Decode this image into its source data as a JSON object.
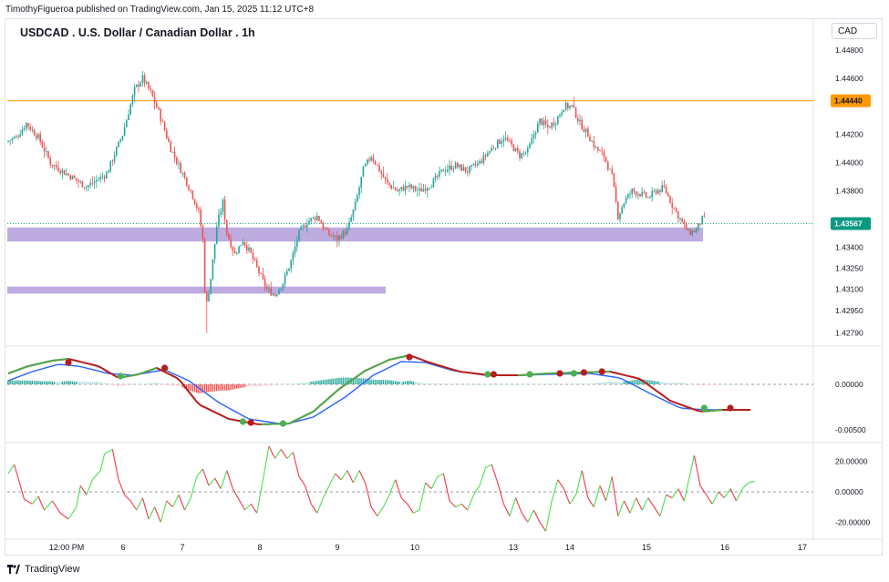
{
  "publisher": "TimothyFigueroa published on TradingView.com, Jan 15, 2025 11:12 UTC+8",
  "symbol_title": "USDCAD . U.S. Dollar / Canadian Dollar . 1h",
  "currency": "CAD",
  "footer_brand": "TradingView",
  "colors": {
    "up": "#26a69a",
    "down": "#ef5350",
    "resistance": "#ff9800",
    "zone": "#b39ddb",
    "price_badge": "#089981",
    "macd_fast": "#4caf50",
    "macd_slow_down": "#b71c1c",
    "macd_signal": "#2962ff",
    "osc_down": "#f23645",
    "osc_up": "#4cdf50"
  },
  "chart_data": [
    {
      "type": "candlestick",
      "pane": "price",
      "title": "USDCAD . U.S. Dollar / Canadian Dollar . 1h",
      "y_ticks": [
        "1.44800",
        "1.44600",
        "1.44440",
        "1.44200",
        "1.44000",
        "1.43800",
        "1.43567",
        "1.43400",
        "1.43250",
        "1.43100",
        "1.42950",
        "1.42790"
      ],
      "ylim": [
        1.4271,
        1.4491
      ],
      "x_ticks": [
        "12:00 PM",
        "6",
        "7",
        "8",
        "9",
        "10",
        "13",
        "14",
        "15",
        "16",
        "17"
      ],
      "resistance_line": 1.4444,
      "resistance_label": "1.44440",
      "last_price": 1.43567,
      "last_price_label": "1.43567",
      "zones": [
        {
          "from": 1.4344,
          "to": 1.4354
        },
        {
          "from": 1.4307,
          "to": 1.4312
        }
      ],
      "path": [
        [
          0,
          1.4415
        ],
        [
          5,
          1.4418
        ],
        [
          10,
          1.4428
        ],
        [
          16,
          1.4418
        ],
        [
          22,
          1.44
        ],
        [
          30,
          1.4392
        ],
        [
          40,
          1.4383
        ],
        [
          50,
          1.4392
        ],
        [
          58,
          1.442
        ],
        [
          64,
          1.4452
        ],
        [
          68,
          1.446
        ],
        [
          72,
          1.445
        ],
        [
          76,
          1.4436
        ],
        [
          82,
          1.441
        ],
        [
          88,
          1.4392
        ],
        [
          92,
          1.438
        ],
        [
          96,
          1.4365
        ],
        [
          98,
          1.4345
        ],
        [
          99,
          1.431
        ],
        [
          100,
          1.43
        ],
        [
          102,
          1.4318
        ],
        [
          105,
          1.4355
        ],
        [
          108,
          1.4372
        ],
        [
          110,
          1.435
        ],
        [
          114,
          1.4335
        ],
        [
          118,
          1.4345
        ],
        [
          122,
          1.4335
        ],
        [
          126,
          1.4322
        ],
        [
          130,
          1.431
        ],
        [
          134,
          1.4306
        ],
        [
          138,
          1.4315
        ],
        [
          142,
          1.433
        ],
        [
          146,
          1.435
        ],
        [
          150,
          1.4358
        ],
        [
          155,
          1.4362
        ],
        [
          160,
          1.435
        ],
        [
          165,
          1.4346
        ],
        [
          170,
          1.4352
        ],
        [
          174,
          1.437
        ],
        [
          178,
          1.4395
        ],
        [
          182,
          1.4405
        ],
        [
          186,
          1.4395
        ],
        [
          190,
          1.4385
        ],
        [
          195,
          1.438
        ],
        [
          200,
          1.4383
        ],
        [
          206,
          1.438
        ],
        [
          212,
          1.4385
        ],
        [
          218,
          1.4395
        ],
        [
          224,
          1.4398
        ],
        [
          230,
          1.4394
        ],
        [
          236,
          1.44
        ],
        [
          242,
          1.441
        ],
        [
          248,
          1.4418
        ],
        [
          252,
          1.4412
        ],
        [
          256,
          1.4405
        ],
        [
          260,
          1.4408
        ],
        [
          263,
          1.442
        ],
        [
          266,
          1.443
        ],
        [
          270,
          1.4425
        ],
        [
          274,
          1.443
        ],
        [
          278,
          1.444
        ],
        [
          282,
          1.444
        ],
        [
          286,
          1.4428
        ],
        [
          290,
          1.442
        ],
        [
          294,
          1.441
        ],
        [
          298,
          1.4405
        ],
        [
          302,
          1.439
        ],
        [
          305,
          1.4362
        ],
        [
          308,
          1.4372
        ],
        [
          312,
          1.438
        ],
        [
          316,
          1.4378
        ],
        [
          320,
          1.4375
        ],
        [
          324,
          1.438
        ],
        [
          328,
          1.4382
        ],
        [
          332,
          1.437
        ],
        [
          336,
          1.436
        ],
        [
          340,
          1.435
        ],
        [
          344,
          1.4352
        ],
        [
          347,
          1.436
        ]
      ],
      "series": [
        {
          "name": "USDCAD",
          "values": []
        }
      ]
    },
    {
      "type": "line",
      "pane": "macd",
      "y_ticks": [
        "0.00000",
        "-0.00500"
      ],
      "ylim": [
        -0.0062,
        0.0038
      ],
      "fast_path": [
        [
          0,
          0.0012
        ],
        [
          10,
          0.002
        ],
        [
          22,
          0.0026
        ],
        [
          30,
          0.0028
        ],
        [
          45,
          0.002
        ],
        [
          55,
          0.0007
        ],
        [
          65,
          0.0011
        ],
        [
          74,
          0.0018
        ],
        [
          85,
          0.0006
        ],
        [
          95,
          -0.0022
        ],
        [
          110,
          -0.0038
        ],
        [
          125,
          -0.0044
        ],
        [
          140,
          -0.0043
        ],
        [
          152,
          -0.003
        ],
        [
          165,
          -0.0005
        ],
        [
          178,
          0.0015
        ],
        [
          190,
          0.0027
        ],
        [
          200,
          0.0032
        ],
        [
          210,
          0.0024
        ],
        [
          225,
          0.0014
        ],
        [
          240,
          0.001
        ],
        [
          255,
          0.001
        ],
        [
          270,
          0.0012
        ],
        [
          285,
          0.0013
        ],
        [
          300,
          0.0014
        ],
        [
          315,
          0.0006
        ],
        [
          330,
          -0.0018
        ],
        [
          345,
          -0.003
        ],
        [
          356,
          -0.0028
        ],
        [
          370,
          -0.0028
        ]
      ],
      "slow_path": [
        [
          0,
          0.0004
        ],
        [
          12,
          0.0014
        ],
        [
          25,
          0.0022
        ],
        [
          35,
          0.002
        ],
        [
          50,
          0.0012
        ],
        [
          62,
          0.001
        ],
        [
          78,
          0.0016
        ],
        [
          90,
          0.0004
        ],
        [
          105,
          -0.002
        ],
        [
          120,
          -0.0038
        ],
        [
          138,
          -0.0044
        ],
        [
          152,
          -0.0036
        ],
        [
          168,
          -0.0014
        ],
        [
          182,
          0.001
        ],
        [
          196,
          0.0025
        ],
        [
          208,
          0.0024
        ],
        [
          222,
          0.0015
        ],
        [
          238,
          0.001
        ],
        [
          255,
          0.001
        ],
        [
          270,
          0.0011
        ],
        [
          290,
          0.0012
        ],
        [
          305,
          0.0007
        ],
        [
          320,
          -0.001
        ],
        [
          335,
          -0.0026
        ],
        [
          348,
          -0.0028
        ],
        [
          360,
          -0.0028
        ]
      ],
      "cross_points": [
        {
          "x": 30,
          "v": 0.0024,
          "kind": "down"
        },
        {
          "x": 56,
          "v": 0.0009,
          "kind": "up"
        },
        {
          "x": 78,
          "v": 0.0018,
          "kind": "down"
        },
        {
          "x": 117,
          "v": -0.0041,
          "kind": "up"
        },
        {
          "x": 121,
          "v": -0.0042,
          "kind": "down"
        },
        {
          "x": 137,
          "v": -0.0043,
          "kind": "up"
        },
        {
          "x": 200,
          "v": 0.003,
          "kind": "down"
        },
        {
          "x": 239,
          "v": 0.0011,
          "kind": "up"
        },
        {
          "x": 242,
          "v": 0.0011,
          "kind": "down"
        },
        {
          "x": 260,
          "v": 0.0011,
          "kind": "up"
        },
        {
          "x": 275,
          "v": 0.0012,
          "kind": "down"
        },
        {
          "x": 282,
          "v": 0.0012,
          "kind": "up"
        },
        {
          "x": 287,
          "v": 0.0013,
          "kind": "down"
        },
        {
          "x": 296,
          "v": 0.0014,
          "kind": "down"
        },
        {
          "x": 347,
          "v": -0.0026,
          "kind": "up"
        },
        {
          "x": 360,
          "v": -0.0026,
          "kind": "down"
        }
      ]
    },
    {
      "type": "line",
      "pane": "oscillator",
      "y_ticks": [
        "20.00000",
        "0.00000",
        "-20.00000"
      ],
      "ylim": [
        -30,
        30
      ],
      "path": [
        [
          0,
          12
        ],
        [
          3,
          18
        ],
        [
          5,
          9
        ],
        [
          8,
          -5
        ],
        [
          12,
          -8
        ],
        [
          15,
          -3
        ],
        [
          18,
          -12
        ],
        [
          22,
          -6
        ],
        [
          26,
          -14
        ],
        [
          30,
          -18
        ],
        [
          34,
          -10
        ],
        [
          36,
          4
        ],
        [
          39,
          -2
        ],
        [
          42,
          8
        ],
        [
          46,
          14
        ],
        [
          48,
          25
        ],
        [
          52,
          28
        ],
        [
          55,
          8
        ],
        [
          58,
          -2
        ],
        [
          61,
          -6
        ],
        [
          64,
          -12
        ],
        [
          67,
          -4
        ],
        [
          70,
          -18
        ],
        [
          73,
          -10
        ],
        [
          76,
          -20
        ],
        [
          79,
          -6
        ],
        [
          82,
          -10
        ],
        [
          85,
          -2
        ],
        [
          88,
          -12
        ],
        [
          91,
          -4
        ],
        [
          94,
          10
        ],
        [
          97,
          15
        ],
        [
          100,
          4
        ],
        [
          103,
          9
        ],
        [
          106,
          2
        ],
        [
          109,
          14
        ],
        [
          112,
          2
        ],
        [
          115,
          -5
        ],
        [
          118,
          -12
        ],
        [
          121,
          -8
        ],
        [
          124,
          -14
        ],
        [
          127,
          8
        ],
        [
          130,
          30
        ],
        [
          133,
          22
        ],
        [
          136,
          28
        ],
        [
          139,
          22
        ],
        [
          142,
          26
        ],
        [
          145,
          10
        ],
        [
          148,
          4
        ],
        [
          151,
          -8
        ],
        [
          154,
          -14
        ],
        [
          157,
          -4
        ],
        [
          160,
          4
        ],
        [
          163,
          12
        ],
        [
          166,
          8
        ],
        [
          169,
          14
        ],
        [
          172,
          6
        ],
        [
          175,
          14
        ],
        [
          178,
          6
        ],
        [
          181,
          -10
        ],
        [
          184,
          -16
        ],
        [
          187,
          -10
        ],
        [
          190,
          -2
        ],
        [
          193,
          8
        ],
        [
          196,
          -4
        ],
        [
          199,
          -8
        ],
        [
          202,
          -14
        ],
        [
          205,
          -12
        ],
        [
          208,
          6
        ],
        [
          211,
          2
        ],
        [
          214,
          10
        ],
        [
          217,
          12
        ],
        [
          220,
          -6
        ],
        [
          223,
          -10
        ],
        [
          226,
          -8
        ],
        [
          229,
          -12
        ],
        [
          232,
          -2
        ],
        [
          235,
          4
        ],
        [
          238,
          16
        ],
        [
          241,
          18
        ],
        [
          244,
          6
        ],
        [
          247,
          -8
        ],
        [
          250,
          -16
        ],
        [
          253,
          -4
        ],
        [
          256,
          -14
        ],
        [
          259,
          -20
        ],
        [
          262,
          -12
        ],
        [
          265,
          -20
        ],
        [
          268,
          -26
        ],
        [
          271,
          -6
        ],
        [
          274,
          8
        ],
        [
          277,
          2
        ],
        [
          280,
          -8
        ],
        [
          283,
          -2
        ],
        [
          286,
          14
        ],
        [
          289,
          -4
        ],
        [
          292,
          -10
        ],
        [
          295,
          4
        ],
        [
          298,
          -6
        ],
        [
          301,
          10
        ],
        [
          304,
          -16
        ],
        [
          307,
          -6
        ],
        [
          310,
          -14
        ],
        [
          313,
          -4
        ],
        [
          316,
          -12
        ],
        [
          319,
          -4
        ],
        [
          322,
          -10
        ],
        [
          325,
          -16
        ],
        [
          328,
          -2
        ],
        [
          331,
          -4
        ],
        [
          334,
          2
        ],
        [
          337,
          -6
        ],
        [
          340,
          12
        ],
        [
          342,
          24
        ],
        [
          345,
          4
        ],
        [
          348,
          -2
        ],
        [
          351,
          -8
        ],
        [
          354,
          0
        ],
        [
          357,
          -4
        ],
        [
          360,
          2
        ],
        [
          363,
          -6
        ],
        [
          366,
          2
        ],
        [
          369,
          6
        ],
        [
          372,
          7
        ]
      ]
    }
  ]
}
